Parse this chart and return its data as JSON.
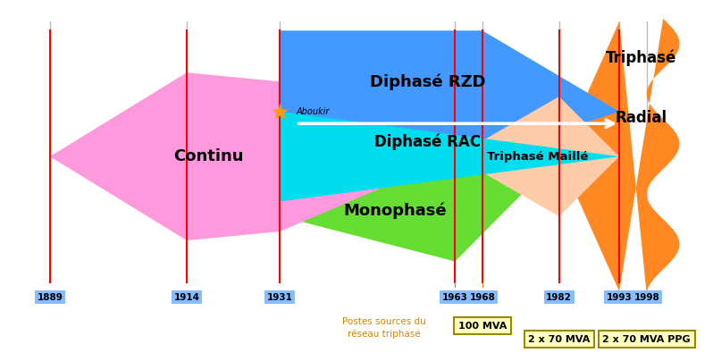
{
  "bg_color": "#ffffff",
  "grid_color": "#bbbbbb",
  "colors": {
    "continu": "#ff99dd",
    "monophase": "#66dd33",
    "diphase_rzd": "#4499ff",
    "diphase_rac": "#00ddee",
    "triphase_maille": "#ffccaa",
    "triphase_radial": "#ff8822",
    "aboukir_star": "#ff9900",
    "year_box": "#88bbff",
    "mva_box": "#ffffbb",
    "mva_border": "#998800",
    "annotation": "#cc8800",
    "red_line": "#ff0000",
    "white": "#ffffff"
  },
  "years_all": [
    1889,
    1914,
    1931,
    1963,
    1968,
    1982,
    1993,
    1998
  ],
  "red_dates": [
    1889,
    1914,
    1931,
    1963,
    1968,
    1982,
    1993
  ],
  "xmin": 1880,
  "xmax": 2010,
  "ymin": -1.8,
  "ymax": 10.2
}
